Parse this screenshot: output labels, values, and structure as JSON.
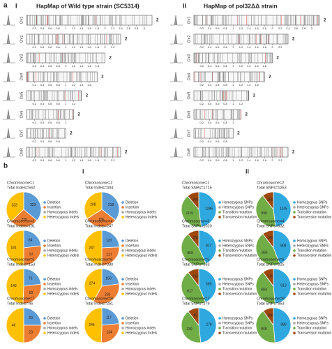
{
  "panel_a": {
    "label": "a",
    "chromosomes": [
      {
        "name": "Chr1",
        "ticks": [
          0.2,
          0.4,
          0.6,
          0.8,
          1.0,
          1.2,
          1.4,
          1.6,
          1.8,
          2.0,
          2.2,
          2.4,
          2.6,
          2.8,
          3.0
        ]
      },
      {
        "name": "Chr2",
        "ticks": [
          0.2,
          0.4,
          0.6,
          0.8,
          1.0,
          1.2,
          1.4,
          1.6,
          1.8,
          2.0,
          2.2
        ]
      },
      {
        "name": "Chr3",
        "ticks": [
          0.2,
          0.4,
          0.6,
          0.8,
          1.0,
          1.2,
          1.4,
          1.6,
          1.8
        ]
      },
      {
        "name": "Chr4",
        "ticks": [
          0.2,
          0.4,
          0.6,
          0.8,
          1.0,
          1.2,
          1.4,
          1.6
        ]
      },
      {
        "name": "Chr5",
        "ticks": [
          0.2,
          0.4,
          0.6,
          0.8,
          1.0,
          1.2
        ]
      },
      {
        "name": "Chr6",
        "ticks": [
          0.2,
          0.4,
          0.6,
          0.8,
          1.0
        ]
      },
      {
        "name": "Chr7",
        "ticks": [
          0.2,
          0.4,
          0.6,
          0.8
        ]
      },
      {
        "name": "ChrR",
        "ticks": [
          0.2,
          0.4,
          0.6,
          0.8,
          1.0,
          1.2,
          1.4,
          1.6,
          1.8,
          2.0,
          2.2
        ]
      }
    ],
    "strains": [
      {
        "numeral": "I",
        "title": "HapMap of Wild type strain (SC5314)",
        "ploidy": [
          2,
          2,
          2,
          2,
          2,
          2,
          2,
          2
        ]
      },
      {
        "numeral": "II",
        "title": "HapMap of pol32ΔΔ strain",
        "ploidy": [
          2,
          2,
          2,
          2,
          2,
          2,
          2,
          2
        ]
      }
    ]
  },
  "panel_b": {
    "label": "b",
    "groups": [
      {
        "numeral": "i",
        "legend": [
          {
            "name": "Deletion",
            "color": "#5b9bd5"
          },
          {
            "name": "Insertion",
            "color": "#ed7d31"
          },
          {
            "name": "Homozygous indels",
            "color": "#a5a5a5"
          },
          {
            "name": "Heterozygous indels",
            "color": "#ffc000"
          }
        ],
        "pies": [
          {
            "title": "Chromosome=1",
            "total": "Total Indels=562",
            "values": [
              323,
              239,
              null,
              333
            ]
          },
          {
            "title": "Chromosome=2",
            "total": "Total Indels=404",
            "values": [
              218,
              186,
              null,
              208
            ]
          },
          {
            "title": "Chromosome=3",
            "total": "Total Indels=181",
            "values": [
              84,
              97,
              null,
              181
            ]
          },
          {
            "title": "Chromosome=4",
            "total": "Total Indels=247",
            "values": [
              120,
              127,
              null,
              247
            ]
          },
          {
            "title": "Chromosome=5",
            "total": "Total Indels=153",
            "values": [
              70,
              83,
              null,
              149
            ]
          },
          {
            "title": "Chromosome=6",
            "total": "Total Indels=380",
            "values": [
              150,
              230,
              null,
              274
            ]
          },
          {
            "title": "Chromosome=7",
            "total": "Total Indels=46",
            "values": [
              23,
              23,
              null,
              46
            ]
          },
          {
            "title": "Chromosome=R",
            "total": "Total Indels=251",
            "values": [
              117,
              134,
              null,
              246
            ]
          }
        ]
      },
      {
        "numeral": "ii",
        "legend": [
          {
            "name": "Homozygous SNPs",
            "color": "#2fa8e0"
          },
          {
            "name": "Heterozygous SNPs",
            "color": "#a5a5a5"
          },
          {
            "name": "Transition mutation",
            "color": "#70ad47"
          },
          {
            "name": "Transversion mutation",
            "color": "#9e480e"
          }
        ],
        "pies": [
          {
            "title": "Chromosome=1",
            "total": "Total SNPs=1715",
            "values": [
              1296,
              null,
              1119,
              300
            ]
          },
          {
            "title": "Chromosome=2",
            "total": "Total SNPs=1263",
            "values": [
              1145,
              null,
              990,
              250
            ]
          },
          {
            "title": "Chromosome=3",
            "total": "Total SNPs=1020",
            "values": [
              817,
              null,
              869,
              200
            ]
          },
          {
            "title": "Chromosome=4",
            "total": "Total SNPs=932",
            "values": [
              808,
              null,
              836,
              190
            ]
          },
          {
            "title": "Chromosome=5",
            "total": "Total SNPs=663",
            "values": [
              589,
              null,
              617,
              140
            ]
          },
          {
            "title": "Chromosome=6",
            "total": "Total SNPs=825",
            "values": [
              813,
              null,
              693,
              170
            ]
          },
          {
            "title": "Chromosome=7",
            "total": "Total SNPs=279",
            "values": [
              278,
              null,
              239,
              60
            ]
          },
          {
            "title": "Chromosome=R",
            "total": "Total SNPs=953",
            "values": [
              989,
              null,
              848,
              200
            ]
          }
        ]
      }
    ]
  }
}
